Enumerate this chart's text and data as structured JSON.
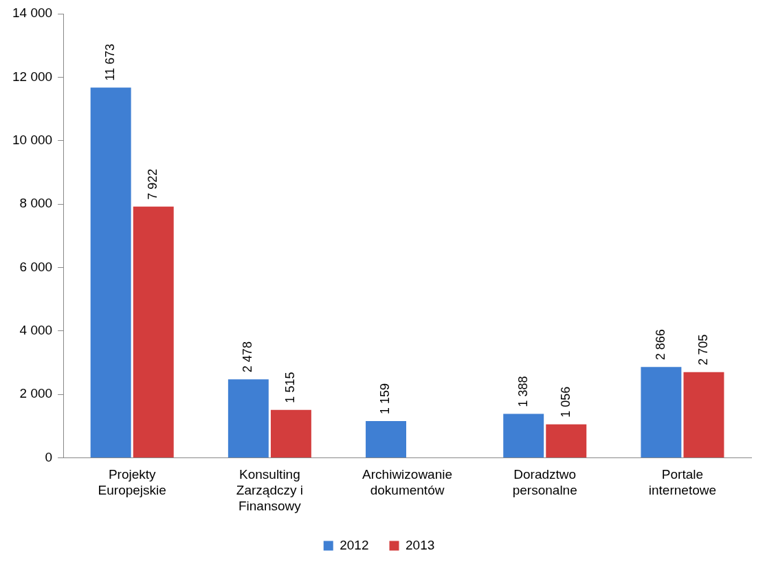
{
  "chart_data": {
    "type": "bar",
    "categories": [
      "Projekty Europejskie",
      "Konsulting Zarządczy i Finansowy",
      "Archiwizowanie dokumentów",
      "Doradztwo personalne",
      "Portale internetowe"
    ],
    "series": [
      {
        "name": "2012",
        "color": "#3f7fd3",
        "values": [
          11673,
          2478,
          1159,
          1388,
          2866
        ],
        "value_labels": [
          "11 673",
          "2 478",
          "1 159",
          "1 388",
          "2 866"
        ]
      },
      {
        "name": "2013",
        "color": "#d33d3d",
        "values": [
          7922,
          1515,
          null,
          1056,
          2705
        ],
        "value_labels": [
          "7 922",
          "1 515",
          null,
          "1 056",
          "2 705"
        ]
      }
    ],
    "ylim": [
      0,
      14000
    ],
    "yticks": [
      {
        "value": 0,
        "label": "0"
      },
      {
        "value": 2000,
        "label": "2 000"
      },
      {
        "value": 4000,
        "label": "4 000"
      },
      {
        "value": 6000,
        "label": "6 000"
      },
      {
        "value": 8000,
        "label": "8 000"
      },
      {
        "value": 10000,
        "label": "10 000"
      },
      {
        "value": 12000,
        "label": "12 000"
      },
      {
        "value": 14000,
        "label": "14 000"
      }
    ],
    "grid": false,
    "legend": "bottom"
  }
}
